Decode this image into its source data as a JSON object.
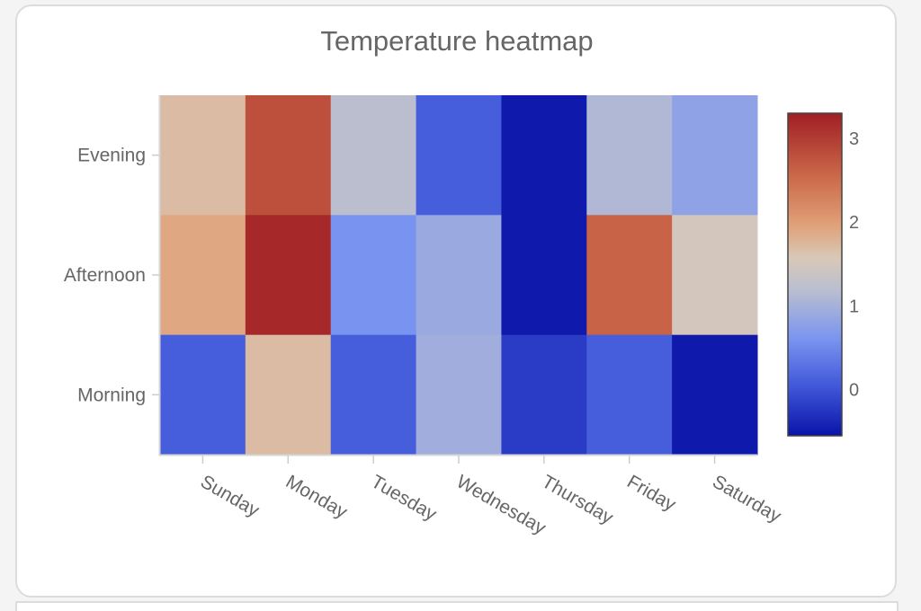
{
  "chart_data": {
    "type": "heatmap",
    "title": "Temperature heatmap",
    "x": [
      "Sunday",
      "Monday",
      "Tuesday",
      "Wednesday",
      "Thursday",
      "Friday",
      "Saturday"
    ],
    "y": [
      "Evening",
      "Afternoon",
      "Morning"
    ],
    "z": [
      [
        1.7,
        2.8,
        1.2,
        0.1,
        -0.5,
        1.1,
        0.8
      ],
      [
        1.9,
        3.2,
        0.6,
        0.9,
        -0.5,
        2.6,
        1.5
      ],
      [
        0.1,
        1.7,
        0.1,
        0.95,
        -0.2,
        0.1,
        -0.5
      ]
    ],
    "zlim": [
      -0.55,
      3.3
    ],
    "colorbar_ticks": [
      0,
      1,
      2,
      3
    ],
    "colorscale": [
      [
        0.0,
        "#0a14a8"
      ],
      [
        0.15,
        "#3f56d8"
      ],
      [
        0.3,
        "#7a94f0"
      ],
      [
        0.45,
        "#b9bed0"
      ],
      [
        0.55,
        "#d8c8b8"
      ],
      [
        0.65,
        "#e0a27a"
      ],
      [
        0.8,
        "#cc6a4a"
      ],
      [
        1.0,
        "#a01e24"
      ]
    ],
    "legend": "right"
  }
}
